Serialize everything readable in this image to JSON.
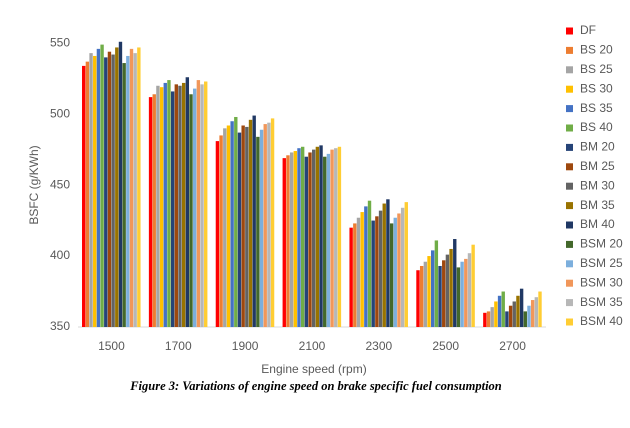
{
  "chart_data": {
    "type": "bar",
    "y_label": "BSFC (g/KWh)",
    "x_label": "Engine speed (rpm)",
    "caption": "Figure 3: Variations of engine speed on brake specific fuel consumption",
    "categories": [
      "1500",
      "1700",
      "1900",
      "2100",
      "2300",
      "2500",
      "2700"
    ],
    "ylim": [
      350,
      560
    ],
    "yticks": [
      350,
      400,
      450,
      500,
      550
    ],
    "grid": false,
    "legend": "right",
    "series": [
      {
        "name": "DF",
        "color": "#ff0000",
        "values": [
          534,
          512,
          481,
          469,
          420,
          390,
          360
        ]
      },
      {
        "name": "BS 20",
        "color": "#ed7d31",
        "values": [
          537,
          514,
          485,
          471,
          423,
          393,
          361
        ]
      },
      {
        "name": "BS 25",
        "color": "#a5a5a5",
        "values": [
          543,
          520,
          490,
          473,
          427,
          396,
          364
        ]
      },
      {
        "name": "BS 30",
        "color": "#ffc000",
        "values": [
          541,
          519,
          492,
          474,
          431,
          400,
          368
        ]
      },
      {
        "name": "BS 35",
        "color": "#4472c4",
        "values": [
          546,
          522,
          495,
          476,
          435,
          404,
          372
        ]
      },
      {
        "name": "BS 40",
        "color": "#70ad47",
        "values": [
          549,
          524,
          498,
          477,
          439,
          411,
          375
        ]
      },
      {
        "name": "BM 20",
        "color": "#264478",
        "values": [
          540,
          516,
          487,
          470,
          425,
          393,
          361
        ]
      },
      {
        "name": "BM 25",
        "color": "#9e480e",
        "values": [
          544,
          521,
          492,
          473,
          428,
          397,
          365
        ]
      },
      {
        "name": "BM 30",
        "color": "#636363",
        "values": [
          542,
          520,
          491,
          475,
          432,
          401,
          368
        ]
      },
      {
        "name": "BM 35",
        "color": "#997300",
        "values": [
          547,
          522,
          496,
          477,
          437,
          405,
          372
        ]
      },
      {
        "name": "BM 40",
        "color": "#203864",
        "values": [
          551,
          526,
          499,
          478,
          440,
          412,
          377
        ]
      },
      {
        "name": "BSM 20",
        "color": "#43682b",
        "values": [
          536,
          514,
          484,
          470,
          423,
          392,
          361
        ]
      },
      {
        "name": "BSM 25",
        "color": "#7cafdd",
        "values": [
          541,
          518,
          489,
          472,
          427,
          396,
          365
        ]
      },
      {
        "name": "BSM 30",
        "color": "#f1975a",
        "values": [
          546,
          524,
          493,
          475,
          430,
          398,
          369
        ]
      },
      {
        "name": "BSM 35",
        "color": "#b7b7b7",
        "values": [
          543,
          521,
          494,
          476,
          434,
          402,
          371
        ]
      },
      {
        "name": "BSM 40",
        "color": "#ffcd33",
        "values": [
          547,
          523,
          497,
          477,
          438,
          408,
          375
        ]
      }
    ]
  }
}
